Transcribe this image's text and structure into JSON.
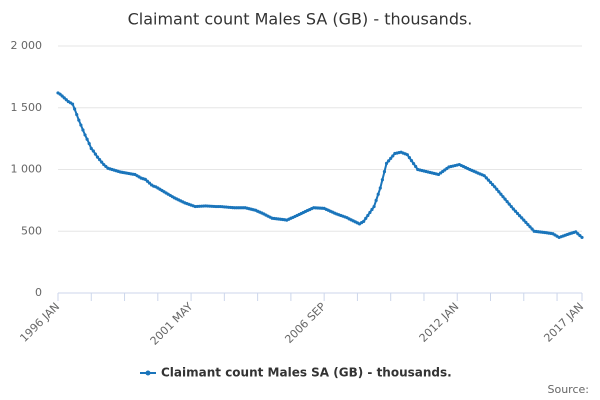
{
  "chart_data": {
    "type": "line",
    "title": "Claimant count Males SA (GB) - thousands.",
    "source": "Source:",
    "categories": [
      "1996 JAN",
      null,
      null,
      null,
      null,
      null,
      null,
      null,
      null,
      null,
      null,
      null,
      null,
      null,
      null,
      null,
      null,
      null,
      null,
      null,
      null,
      null,
      null,
      null,
      null,
      null,
      null,
      null,
      null,
      null,
      null,
      null,
      null,
      null,
      null,
      null,
      null,
      null,
      null,
      null,
      null,
      null,
      null,
      null,
      null,
      null,
      null,
      null,
      null,
      null,
      null,
      null,
      null,
      null,
      null,
      null,
      null,
      null,
      null,
      null,
      null,
      null,
      null,
      null,
      "2001 MAY",
      null,
      null,
      null,
      null,
      null,
      null,
      null,
      null,
      null,
      null,
      null,
      null,
      null,
      null,
      null,
      null,
      null,
      null,
      null,
      null,
      null,
      null,
      null,
      null,
      null,
      null,
      null,
      null,
      null,
      null,
      null,
      null,
      null,
      null,
      null,
      null,
      null,
      null,
      null,
      null,
      null,
      null,
      null,
      null,
      null,
      null,
      null,
      null,
      null,
      null,
      null,
      null,
      null,
      null,
      null,
      null,
      null,
      null,
      null,
      null,
      null,
      null,
      null,
      "2006 SEP",
      null,
      null,
      null,
      null,
      null,
      null,
      null,
      null,
      null,
      null,
      null,
      null,
      null,
      null,
      null,
      null,
      null,
      null,
      null,
      null,
      null,
      null,
      null,
      null,
      null,
      null,
      null,
      null,
      null,
      null,
      null,
      null,
      null,
      null,
      null,
      null,
      null,
      null,
      null,
      null,
      null,
      null,
      null,
      null,
      null,
      null,
      null,
      null,
      null,
      null,
      null,
      null,
      null,
      null,
      null,
      null,
      null,
      null,
      null,
      null,
      null,
      null,
      null,
      "2012 JAN",
      null,
      null,
      null,
      null,
      null,
      null,
      null,
      null,
      null,
      null,
      null,
      null,
      null,
      null,
      null,
      null,
      null,
      null,
      null,
      null,
      null,
      null,
      null,
      null,
      null,
      null,
      null,
      null,
      null,
      null,
      null,
      null,
      null,
      null,
      null,
      null,
      null,
      null,
      null,
      null,
      null,
      null,
      null,
      null,
      null,
      null,
      null,
      null,
      null,
      null,
      null,
      null,
      null,
      null,
      null,
      null,
      null,
      null,
      null,
      "2017 JAN"
    ],
    "series": [
      {
        "name": "Claimant count Males SA (GB) - thousands.",
        "color": "#1a75bb",
        "values": [
          1620,
          1610,
          1595,
          1580,
          1565,
          1550,
          1540,
          1530,
          1490,
          1445,
          1400,
          1360,
          1320,
          1280,
          1245,
          1210,
          1170,
          1150,
          1125,
          1100,
          1080,
          1060,
          1040,
          1025,
          1010,
          1005,
          1000,
          995,
          990,
          985,
          980,
          977,
          974,
          971,
          968,
          965,
          962,
          960,
          950,
          940,
          930,
          925,
          920,
          905,
          890,
          875,
          865,
          860,
          850,
          840,
          830,
          820,
          810,
          800,
          790,
          780,
          770,
          762,
          754,
          746,
          738,
          730,
          724,
          718,
          712,
          706,
          700,
          701,
          702,
          703,
          704,
          705,
          704,
          703,
          702,
          701,
          700,
          700,
          700,
          699,
          697,
          696,
          694,
          693,
          691,
          690,
          690,
          690,
          690,
          690,
          690,
          686,
          682,
          678,
          674,
          670,
          662,
          655,
          648,
          640,
          631,
          622,
          614,
          605,
          603,
          601,
          599,
          597,
          595,
          593,
          590,
          597,
          605,
          612,
          620,
          628,
          636,
          644,
          652,
          660,
          668,
          675,
          683,
          690,
          689,
          688,
          687,
          686,
          685,
          677,
          670,
          662,
          655,
          647,
          640,
          634,
          628,
          622,
          616,
          610,
          600,
          592,
          584,
          576,
          568,
          560,
          570,
          580,
          604,
          628,
          652,
          676,
          700,
          750,
          800,
          850,
          917,
          983,
          1050,
          1070,
          1090,
          1110,
          1130,
          1133,
          1137,
          1140,
          1133,
          1127,
          1120,
          1096,
          1072,
          1048,
          1024,
          1000,
          996,
          992,
          988,
          984,
          980,
          976,
          972,
          968,
          964,
          960,
          972,
          984,
          996,
          1008,
          1020,
          1024,
          1028,
          1032,
          1036,
          1040,
          1032,
          1024,
          1016,
          1008,
          1000,
          993,
          986,
          979,
          971,
          964,
          957,
          950,
          932,
          914,
          896,
          878,
          860,
          840,
          820,
          800,
          780,
          760,
          740,
          720,
          700,
          680,
          662,
          644,
          626,
          608,
          590,
          572,
          554,
          536,
          518,
          500,
          498,
          496,
          494,
          492,
          490,
          488,
          485,
          483,
          480,
          470,
          460,
          450,
          456,
          462,
          468,
          474,
          480,
          485,
          490,
          495,
          480,
          465,
          450
        ]
      }
    ],
    "ylim": [
      0,
      2000
    ],
    "yticks": [
      0,
      500,
      {
        "value": 1000,
        "label": "1 000"
      },
      {
        "value": 1500,
        "label": "1 500"
      },
      {
        "value": 2000,
        "label": "2 000"
      }
    ],
    "grid": true,
    "legend": "bottom"
  }
}
